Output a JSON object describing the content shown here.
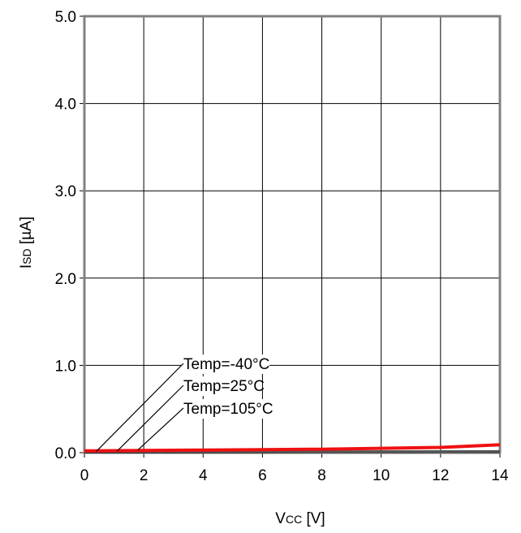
{
  "chart_data": {
    "type": "line",
    "title": "",
    "xlabel": {
      "main": "V",
      "sub": "CC",
      "unit": " [V]"
    },
    "ylabel": {
      "main": "I",
      "sub": "SD",
      "unit": " [µA]"
    },
    "xlim": [
      0,
      14
    ],
    "ylim": [
      0,
      5
    ],
    "x_ticks": [
      "0",
      "2",
      "4",
      "6",
      "8",
      "10",
      "12",
      "14"
    ],
    "y_ticks": [
      "0.0",
      "1.0",
      "2.0",
      "3.0",
      "4.0",
      "5.0"
    ],
    "grid": true,
    "series": [
      {
        "name": "Temp=-40°C",
        "color": "#000000",
        "x": [
          0,
          2,
          4,
          6,
          8,
          10,
          12,
          14
        ],
        "y": [
          0.005,
          0.006,
          0.007,
          0.008,
          0.009,
          0.01,
          0.011,
          0.012
        ]
      },
      {
        "name": "Temp=25°C",
        "color": "#555555",
        "x": [
          0,
          2,
          4,
          6,
          8,
          10,
          12,
          14
        ],
        "y": [
          0.008,
          0.009,
          0.01,
          0.011,
          0.012,
          0.013,
          0.014,
          0.015
        ]
      },
      {
        "name": "Temp=105°C",
        "color": "#ee1111",
        "x": [
          0,
          2,
          4,
          6,
          8,
          10,
          12,
          14
        ],
        "y": [
          0.02,
          0.025,
          0.03,
          0.035,
          0.04,
          0.05,
          0.06,
          0.09
        ]
      }
    ],
    "annotations": [
      {
        "text": "Temp=-40°C",
        "series": 0,
        "target_x": 0.4
      },
      {
        "text": "Temp=25°C",
        "series": 1,
        "target_x": 1.1
      },
      {
        "text": "Temp=105°C",
        "series": 2,
        "target_x": 1.8
      }
    ]
  }
}
